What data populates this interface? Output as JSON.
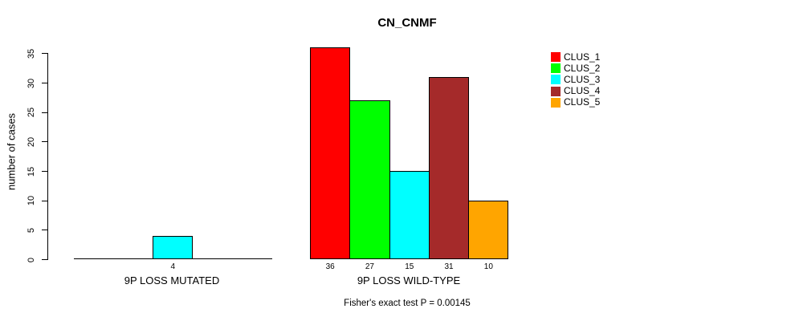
{
  "chart_data": {
    "type": "bar",
    "title": "CN_CNMF",
    "xlabel": "",
    "ylabel": "number of cases",
    "categories": [
      "9P LOSS MUTATED",
      "9P LOSS WILD-TYPE"
    ],
    "series": [
      {
        "name": "CLUS_1",
        "color": "#FF0000",
        "values": [
          0,
          36
        ]
      },
      {
        "name": "CLUS_2",
        "color": "#00FF00",
        "values": [
          0,
          27
        ]
      },
      {
        "name": "CLUS_3",
        "color": "#00FFFF",
        "values": [
          4,
          15
        ]
      },
      {
        "name": "CLUS_4",
        "color": "#A52A2A",
        "values": [
          0,
          31
        ]
      },
      {
        "name": "CLUS_5",
        "color": "#FFA500",
        "values": [
          0,
          10
        ]
      }
    ],
    "bar_value_labels": [
      [
        "",
        "",
        "4",
        "",
        ""
      ],
      [
        "36",
        "27",
        "15",
        "31",
        "10"
      ]
    ],
    "y_ticks": [
      0,
      5,
      10,
      15,
      20,
      25,
      30,
      35
    ],
    "ylim": [
      0,
      36
    ],
    "grid": false,
    "legend_position": "top-right",
    "annotation": "Fisher's exact test P = 0.00145",
    "axis_color": "#000000",
    "background_color": "#FFFFFF"
  }
}
